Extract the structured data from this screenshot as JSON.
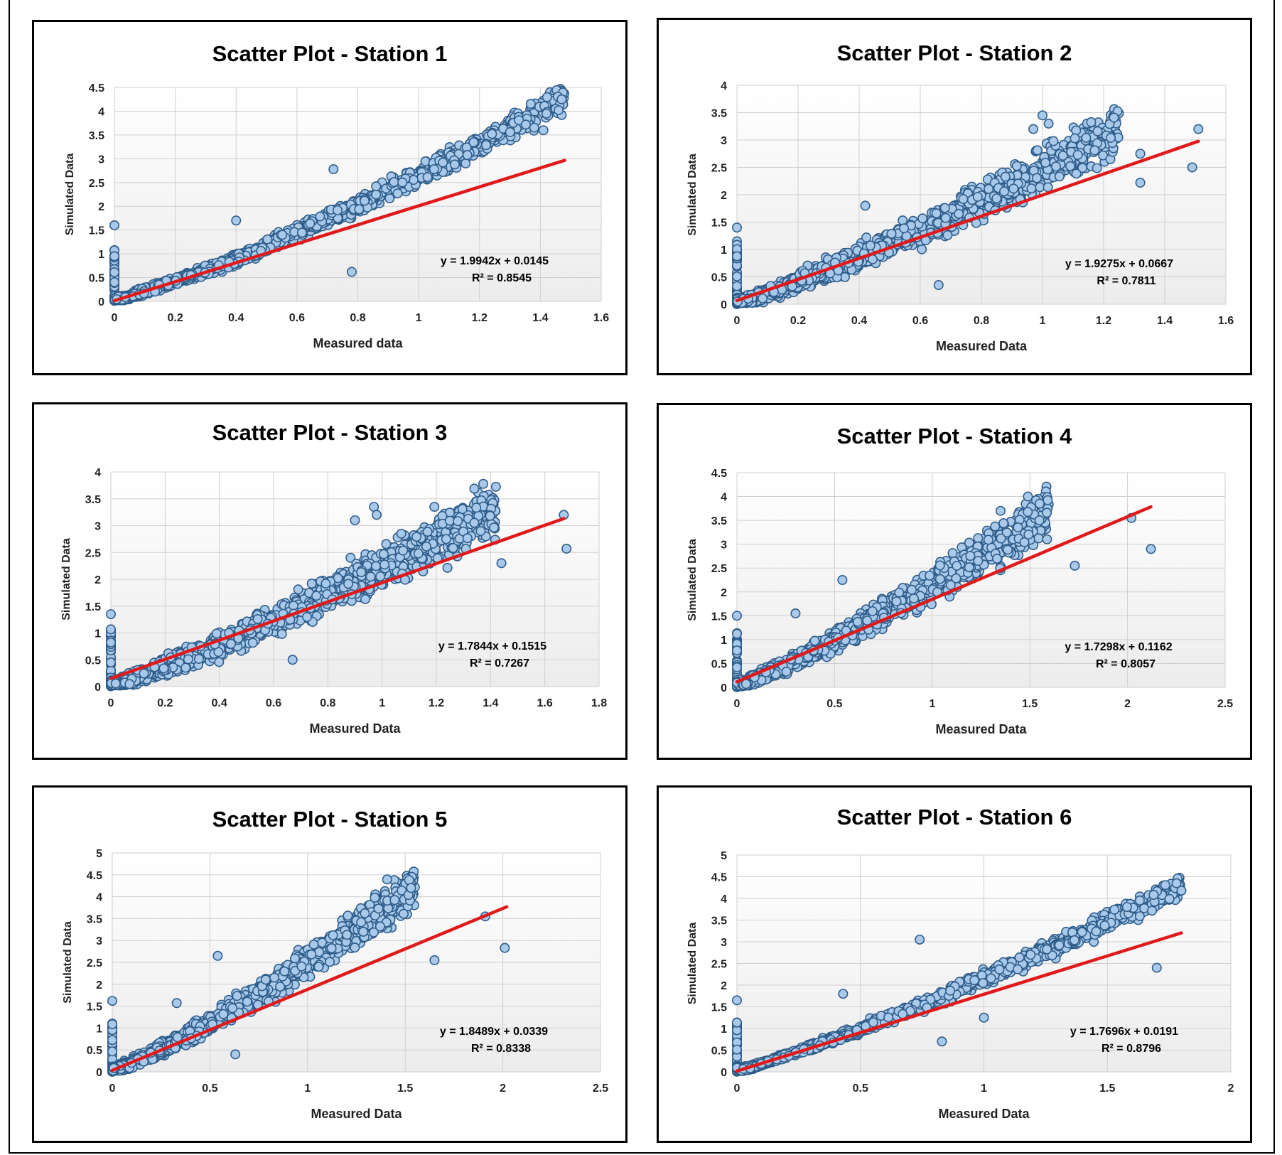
{
  "chart_data": [
    {
      "type": "scatter",
      "title": "Scatter Plot - Station 1",
      "xlabel": "Measured data",
      "ylabel": "Simulated Data",
      "xlim": [
        0,
        1.6
      ],
      "xstep": 0.2,
      "ylim": [
        0,
        4.5
      ],
      "ystep": 0.5,
      "x_ticks": [
        "0",
        "0.2",
        "0.4",
        "0.6",
        "0.8",
        "1",
        "1.2",
        "1.4",
        "1.6"
      ],
      "y_ticks": [
        "0",
        "0.5",
        "1",
        "1.5",
        "2",
        "2.5",
        "3",
        "3.5",
        "4",
        "4.5"
      ],
      "grid": true,
      "trendline": {
        "slope": 1.9942,
        "intercept": 0.0145,
        "x_range": [
          0,
          1.48
        ]
      },
      "equation": "y = 1.9942x + 0.0145",
      "r2_label": "R² = 0.8545",
      "point_trend": {
        "xmax": 1.48,
        "slope": 2.1,
        "curvature": 0.55,
        "spread": 0.22
      },
      "outliers": [
        [
          0,
          1.6
        ],
        [
          0.72,
          2.78
        ],
        [
          0.4,
          1.7
        ],
        [
          0.78,
          0.62
        ],
        [
          1.47,
          4.25
        ],
        [
          1.47,
          3.92
        ],
        [
          1.46,
          4.02
        ],
        [
          1.42,
          3.95
        ],
        [
          1.41,
          3.6
        ]
      ]
    },
    {
      "type": "scatter",
      "title": "Scatter Plot - Station 2",
      "xlabel": "Measured Data",
      "ylabel": "Simulated Data",
      "xlim": [
        0,
        1.6
      ],
      "xstep": 0.2,
      "ylim": [
        0,
        4
      ],
      "ystep": 0.5,
      "x_ticks": [
        "0",
        "0.2",
        "0.4",
        "0.6",
        "0.8",
        "1",
        "1.2",
        "1.4",
        "1.6"
      ],
      "y_ticks": [
        "0",
        "0.5",
        "1",
        "1.5",
        "2",
        "2.5",
        "3",
        "3.5",
        "4"
      ],
      "grid": true,
      "trendline": {
        "slope": 1.9275,
        "intercept": 0.0667,
        "x_range": [
          0,
          1.51
        ]
      },
      "equation": "y = 1.9275x + 0.0667",
      "r2_label": "R² = 0.7811",
      "point_trend": {
        "xmax": 1.25,
        "slope": 2.0,
        "curvature": 0.45,
        "spread": 0.38
      },
      "outliers": [
        [
          0,
          1.4
        ],
        [
          0.42,
          1.8
        ],
        [
          0.97,
          3.2
        ],
        [
          1.0,
          3.45
        ],
        [
          1.02,
          3.3
        ],
        [
          1.51,
          3.2
        ],
        [
          1.49,
          2.5
        ],
        [
          1.32,
          2.75
        ],
        [
          1.32,
          2.22
        ],
        [
          0.66,
          0.35
        ]
      ]
    },
    {
      "type": "scatter",
      "title": "Scatter Plot - Station 3",
      "xlabel": "Measured Data",
      "ylabel": "Simulated Data",
      "xlim": [
        0,
        1.8
      ],
      "xstep": 0.2,
      "ylim": [
        0,
        4
      ],
      "ystep": 0.5,
      "x_ticks": [
        "0",
        "0.2",
        "0.4",
        "0.6",
        "0.8",
        "1",
        "1.2",
        "1.4",
        "1.6",
        "1.8"
      ],
      "y_ticks": [
        "0",
        "0.5",
        "1",
        "1.5",
        "2",
        "2.5",
        "3",
        "3.5",
        "4"
      ],
      "grid": true,
      "trendline": {
        "slope": 1.7844,
        "intercept": 0.1515,
        "x_range": [
          0,
          1.67
        ]
      },
      "equation": "y = 1.7844x + 0.1515",
      "r2_label": "R² = 0.7267",
      "point_trend": {
        "xmax": 1.42,
        "slope": 1.85,
        "curvature": 0.35,
        "spread": 0.4
      },
      "outliers": [
        [
          0,
          1.35
        ],
        [
          0.97,
          3.35
        ],
        [
          0.98,
          3.2
        ],
        [
          0.9,
          3.1
        ],
        [
          1.67,
          3.2
        ],
        [
          1.68,
          2.57
        ],
        [
          1.44,
          2.3
        ],
        [
          0.67,
          0.5
        ]
      ]
    },
    {
      "type": "scatter",
      "title": "Scatter Plot - Station 4",
      "xlabel": "Measured Data",
      "ylabel": "Simulated Data",
      "xlim": [
        0,
        2.5
      ],
      "xstep": 0.5,
      "ylim": [
        0,
        4.5
      ],
      "ystep": 0.5,
      "x_ticks": [
        "0",
        "0.5",
        "1",
        "1.5",
        "2",
        "2.5"
      ],
      "y_ticks": [
        "0",
        "0.5",
        "1",
        "1.5",
        "2",
        "2.5",
        "3",
        "3.5",
        "4",
        "4.5"
      ],
      "grid": true,
      "trendline": {
        "slope": 1.7298,
        "intercept": 0.1162,
        "x_range": [
          0,
          2.12
        ]
      },
      "equation": "y = 1.7298x + 0.1162",
      "r2_label": "R² = 0.8057",
      "point_trend": {
        "xmax": 1.6,
        "slope": 1.85,
        "curvature": 0.3,
        "spread": 0.35
      },
      "outliers": [
        [
          0,
          1.5
        ],
        [
          0.54,
          2.25
        ],
        [
          1.49,
          4.0
        ],
        [
          1.55,
          3.85
        ],
        [
          1.35,
          3.7
        ],
        [
          2.02,
          3.55
        ],
        [
          2.12,
          2.9
        ],
        [
          1.73,
          2.55
        ],
        [
          0.3,
          1.55
        ]
      ]
    },
    {
      "type": "scatter",
      "title": "Scatter Plot - Station 5",
      "xlabel": "Measured Data",
      "ylabel": "Simulated Data",
      "xlim": [
        0,
        2.5
      ],
      "xstep": 0.5,
      "ylim": [
        0,
        5
      ],
      "ystep": 0.5,
      "x_ticks": [
        "0",
        "0.5",
        "1",
        "1.5",
        "2",
        "2.5"
      ],
      "y_ticks": [
        "0",
        "0.5",
        "1",
        "1.5",
        "2",
        "2.5",
        "3",
        "3.5",
        "4",
        "4.5",
        "5"
      ],
      "grid": true,
      "trendline": {
        "slope": 1.8489,
        "intercept": 0.0339,
        "x_range": [
          0,
          2.02
        ]
      },
      "equation": "y = 1.8489x + 0.0339",
      "r2_label": "R² = 0.8338",
      "point_trend": {
        "xmax": 1.55,
        "slope": 2.05,
        "curvature": 0.45,
        "spread": 0.35
      },
      "outliers": [
        [
          0,
          1.62
        ],
        [
          0.54,
          2.65
        ],
        [
          0.33,
          1.57
        ],
        [
          1.52,
          4.38
        ],
        [
          1.53,
          4.2
        ],
        [
          1.91,
          3.55
        ],
        [
          2.01,
          2.83
        ],
        [
          1.65,
          2.55
        ],
        [
          0.63,
          0.4
        ]
      ]
    },
    {
      "type": "scatter",
      "title": "Scatter Plot - Station 6",
      "xlabel": "Measured Data",
      "ylabel": "Simulated Data",
      "xlim": [
        0,
        2
      ],
      "xstep": 0.5,
      "ylim": [
        0,
        5
      ],
      "ystep": 0.5,
      "x_ticks": [
        "0",
        "0.5",
        "1",
        "1.5",
        "2"
      ],
      "y_ticks": [
        "0",
        "0.5",
        "1",
        "1.5",
        "2",
        "2.5",
        "3",
        "3.5",
        "4",
        "4.5",
        "5"
      ],
      "grid": true,
      "trendline": {
        "slope": 1.7696,
        "intercept": 0.0191,
        "x_range": [
          0,
          1.8
        ]
      },
      "equation": "y = 1.7696x + 0.0191",
      "r2_label": "R² = 0.8796",
      "point_trend": {
        "xmax": 1.8,
        "slope": 1.85,
        "curvature": 0.3,
        "spread": 0.17
      },
      "outliers": [
        [
          0,
          1.65
        ],
        [
          0.74,
          3.05
        ],
        [
          0.43,
          1.8
        ],
        [
          1.78,
          4.35
        ],
        [
          1.8,
          4.18
        ],
        [
          1.7,
          2.4
        ],
        [
          1.0,
          1.25
        ],
        [
          0.83,
          0.7
        ]
      ]
    }
  ]
}
